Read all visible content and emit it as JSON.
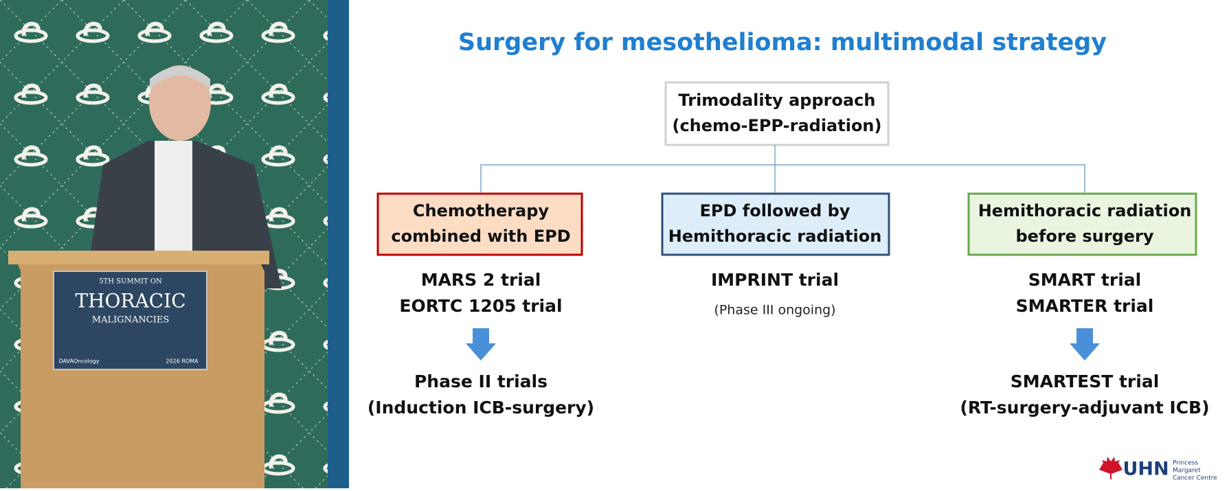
{
  "slide": {
    "title": "Surgery for mesothelioma: multimodal strategy",
    "root": [
      "Trimodality approach",
      "(chemo-EPP-radiation)"
    ],
    "branches": [
      {
        "box": [
          "Chemotherapy",
          "combined with EPD"
        ],
        "trials": [
          "MARS 2 trial",
          "EORTC 1205 trial"
        ],
        "outcome": [
          "Phase II trials",
          "(Induction ICB-surgery)"
        ]
      },
      {
        "box": [
          "EPD followed by",
          "Hemithoracic radiation"
        ],
        "trials": [
          "IMPRINT trial"
        ],
        "note": "(Phase III ongoing)"
      },
      {
        "box": [
          "Hemithoracic radiation",
          "before surgery"
        ],
        "trials": [
          "SMART trial",
          "SMARTER trial"
        ],
        "outcome": [
          "SMARTEST trial",
          "(RT-surgery-adjuvant ICB)"
        ]
      }
    ],
    "logo": {
      "name": "UHN",
      "sub": [
        "Princess",
        "Margaret",
        "Cancer Centre"
      ]
    }
  },
  "video": {
    "podium": [
      "5TH SUMMIT ON",
      "THORACIC",
      "MALIGNANCIES",
      "DAVAOncology",
      "2026 ROMA"
    ]
  }
}
